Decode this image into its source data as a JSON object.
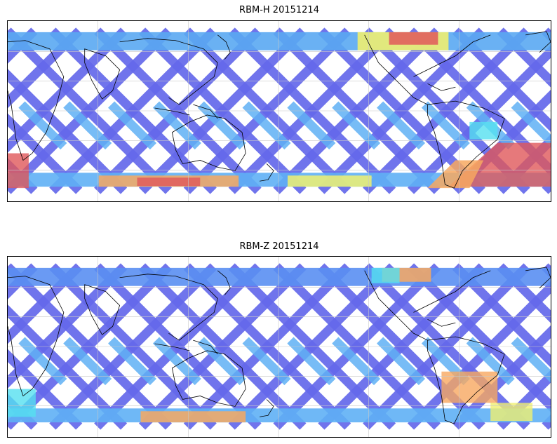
{
  "panels": [
    {
      "title": "RBM-H 20151214",
      "band_color_north": "#5aa8f2",
      "hotspots": [
        {
          "area": "north-pacific-arctic",
          "level": "high",
          "color": "#e25a5a"
        },
        {
          "area": "southern-ocean-west",
          "level": "high",
          "color": "#e25a5a"
        },
        {
          "area": "south-atlantic",
          "level": "high",
          "color": "#d45f5f"
        }
      ]
    },
    {
      "title": "RBM-Z 20151214",
      "band_color_north": "#5a8ff2",
      "hotspots": [
        {
          "area": "north-pacific-arctic",
          "level": "medium",
          "color": "#f4a25a"
        },
        {
          "area": "southern-ocean-west",
          "level": "medium",
          "color": "#f4c25a"
        },
        {
          "area": "south-atlantic",
          "level": "medium",
          "color": "#f0a060"
        }
      ]
    }
  ],
  "colors": {
    "swath_main": "#6468ea",
    "swath_light": "#5fb0f5",
    "swath_cyan": "#55e0f0",
    "swath_yellow": "#f0f070",
    "swath_orange": "#f7a860",
    "swath_red": "#e0585a",
    "coast": "#000000",
    "grid": "#c8c8c8"
  }
}
